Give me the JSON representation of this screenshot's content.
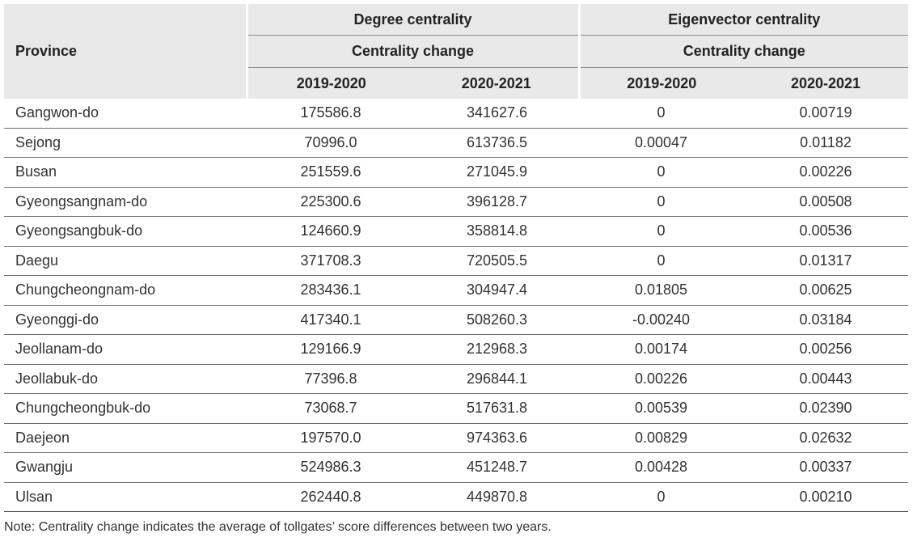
{
  "table": {
    "header": {
      "province": "Province",
      "degree": "Degree centrality",
      "eigen": "Eigenvector centrality",
      "change_degree": "Centrality change",
      "change_eigen": "Centrality change",
      "periods": [
        "2019-2020",
        "2020-2021",
        "2019-2020",
        "2020-2021"
      ]
    },
    "rows": [
      [
        "Gangwon-do",
        "175586.8",
        "341627.6",
        "0",
        "0.00719"
      ],
      [
        "Sejong",
        "70996.0",
        "613736.5",
        "0.00047",
        "0.01182"
      ],
      [
        "Busan",
        "251559.6",
        "271045.9",
        "0",
        "0.00226"
      ],
      [
        "Gyeongsangnam-do",
        "225300.6",
        "396128.7",
        "0",
        "0.00508"
      ],
      [
        "Gyeongsangbuk-do",
        "124660.9",
        "358814.8",
        "0",
        "0.00536"
      ],
      [
        "Daegu",
        "371708.3",
        "720505.5",
        "0",
        "0.01317"
      ],
      [
        "Chungcheongnam-do",
        "283436.1",
        "304947.4",
        "0.01805",
        "0.00625"
      ],
      [
        "Gyeonggi-do",
        "417340.1",
        "508260.3",
        "-0.00240",
        "0.03184"
      ],
      [
        "Jeollanam-do",
        "129166.9",
        "212968.3",
        "0.00174",
        "0.00256"
      ],
      [
        "Jeollabuk-do",
        "77396.8",
        "296844.1",
        "0.00226",
        "0.00443"
      ],
      [
        "Chungcheongbuk-do",
        "73068.7",
        "517631.8",
        "0.00539",
        "0.02390"
      ],
      [
        "Daejeon",
        "197570.0",
        "974363.6",
        "0.00829",
        "0.02632"
      ],
      [
        "Gwangju",
        "524986.3",
        "451248.7",
        "0.00428",
        "0.00337"
      ],
      [
        "Ulsan",
        "262440.8",
        "449870.8",
        "0",
        "0.00210"
      ]
    ]
  },
  "note": "Note: Centrality change indicates the average of tollgates’ score differences between two years."
}
